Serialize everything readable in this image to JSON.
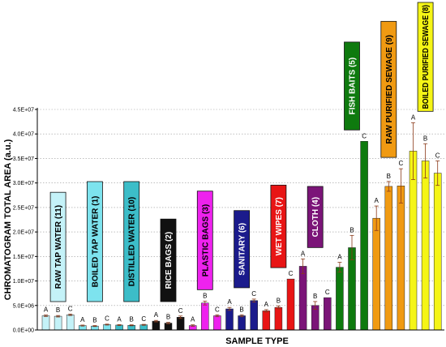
{
  "chart_data": {
    "type": "bar",
    "xlabel": "SAMPLE TYPE",
    "ylabel": "CHROMATOGRAM TOTAL AREA (a.u.)",
    "ylim": [
      0,
      45000000
    ],
    "y_ticks": [
      "0.0E+00",
      "5.0E+06",
      "1.0E+07",
      "1.5E+07",
      "2.0E+07",
      "2.5E+07",
      "3.0E+07",
      "3.5E+07",
      "4.0E+07",
      "4.5E+07"
    ],
    "grid": "dotted horizontal",
    "groups": [
      {
        "label": "RAW TAP WATER (11)",
        "color": "#c4f2f8",
        "bars": [
          {
            "value": 2900000,
            "error": 150000,
            "letter": "A"
          },
          {
            "value": 2800000,
            "error": 150000,
            "letter": "B"
          },
          {
            "value": 3100000,
            "error": 150000,
            "letter": "C"
          }
        ]
      },
      {
        "label": "BOILED TAP WATER (1)",
        "color": "#7de3ee",
        "bars": [
          {
            "value": 900000,
            "error": 100000,
            "letter": "A"
          },
          {
            "value": 800000,
            "error": 100000,
            "letter": "B"
          },
          {
            "value": 1100000,
            "error": 100000,
            "letter": "C"
          }
        ]
      },
      {
        "label": "DISTILLED WATER (10)",
        "color": "#3cbdc8",
        "bars": [
          {
            "value": 1000000,
            "error": 100000,
            "letter": "A"
          },
          {
            "value": 950000,
            "error": 100000,
            "letter": "B"
          },
          {
            "value": 1050000,
            "error": 100000,
            "letter": "C"
          }
        ]
      },
      {
        "label": "RICE BAGS (2)",
        "color": "#111111",
        "bars": [
          {
            "value": 1800000,
            "error": 150000,
            "letter": "A"
          },
          {
            "value": 1400000,
            "error": 150000,
            "letter": "B"
          },
          {
            "value": 2600000,
            "error": 250000,
            "letter": "C"
          }
        ]
      },
      {
        "label": "PLASTIC BAGS (3)",
        "color": "#ee22ee",
        "bars": [
          {
            "value": 900000,
            "error": 150000,
            "letter": "A"
          },
          {
            "value": 5500000,
            "error": 400000,
            "letter": "B"
          },
          {
            "value": 2900000,
            "error": 200000,
            "letter": "C"
          }
        ]
      },
      {
        "label": "SANITARY (6)",
        "color": "#1b1b8c",
        "bars": [
          {
            "value": 4300000,
            "error": 300000,
            "letter": "A"
          },
          {
            "value": 2900000,
            "error": 200000,
            "letter": "B"
          },
          {
            "value": 6000000,
            "error": 300000,
            "letter": "C"
          }
        ]
      },
      {
        "label": "WET WIPES (7)",
        "color": "#e81515",
        "bars": [
          {
            "value": 3900000,
            "error": 250000,
            "letter": "A"
          },
          {
            "value": 4600000,
            "error": 300000,
            "letter": "B"
          },
          {
            "value": 10400000,
            "error": 0,
            "letter": "C"
          }
        ]
      },
      {
        "label": "CLOTH (4)",
        "color": "#7b1478",
        "bars": [
          {
            "value": 13000000,
            "error": 1500000,
            "letter": "A"
          },
          {
            "value": 5000000,
            "error": 800000,
            "letter": "B"
          },
          {
            "value": 6600000,
            "error": 0,
            "letter": "C"
          }
        ]
      },
      {
        "label": "FISH BAITS (5)",
        "color": "#0e7a0e",
        "bars": [
          {
            "value": 12800000,
            "error": 1000000,
            "letter": "A"
          },
          {
            "value": 16800000,
            "error": 2500000,
            "letter": "B"
          },
          {
            "value": 38500000,
            "error": 0,
            "letter": "C"
          }
        ]
      },
      {
        "label": "RAW PURIFIED SEWAGE (9)",
        "color": "#f09a12",
        "bars": [
          {
            "value": 22800000,
            "error": 2500000,
            "letter": "A"
          },
          {
            "value": 29300000,
            "error": 1000000,
            "letter": "B"
          },
          {
            "value": 29400000,
            "error": 3500000,
            "letter": "C"
          }
        ]
      },
      {
        "label": "BOILED PURIFIED SEWAGE (8)",
        "color": "#f5f516",
        "bars": [
          {
            "value": 36500000,
            "error": 5800000,
            "letter": "A"
          },
          {
            "value": 34500000,
            "error": 3500000,
            "letter": "B"
          },
          {
            "value": 32000000,
            "error": 2500000,
            "letter": "C"
          }
        ]
      }
    ]
  }
}
